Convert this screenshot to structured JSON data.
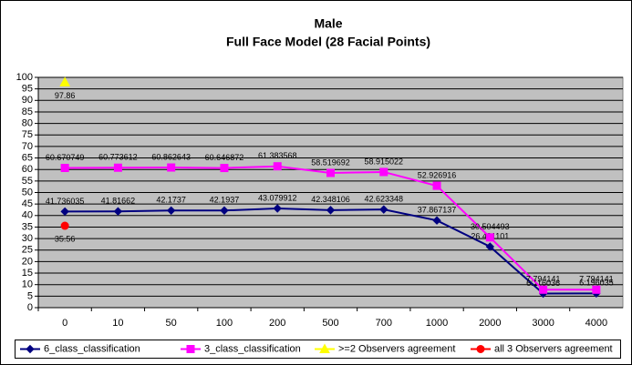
{
  "chart_data": {
    "type": "line",
    "title": "Male",
    "subtitle": "Full Face Model (28 Facial Points)",
    "categories": [
      "0",
      "10",
      "50",
      "100",
      "200",
      "500",
      "700",
      "1000",
      "2000",
      "3000",
      "4000"
    ],
    "series": [
      {
        "name": "6_class_classification",
        "color": "#000080",
        "marker": "diamond",
        "values": [
          41.736035,
          41.81662,
          42.1737,
          42.1937,
          43.079912,
          42.348106,
          42.623348,
          37.867137,
          26.491101,
          6.116036,
          6.196035
        ]
      },
      {
        "name": "3_class_classification",
        "color": "#ff00ff",
        "marker": "square",
        "values": [
          60.670749,
          60.773612,
          60.862643,
          60.646872,
          61.383568,
          58.519692,
          58.915022,
          52.926916,
          30.504493,
          7.794141,
          7.794141
        ]
      },
      {
        "name": ">=2 Observers agreement",
        "color": "#ffff00",
        "marker": "triangle",
        "values": [
          97.86,
          null,
          null,
          null,
          null,
          null,
          null,
          null,
          null,
          null,
          null
        ]
      },
      {
        "name": "all 3 Observers agreement",
        "color": "#ff0000",
        "marker": "circle",
        "values": [
          35.56,
          null,
          null,
          null,
          null,
          null,
          null,
          null,
          null,
          null,
          null
        ]
      }
    ],
    "ylim": [
      0,
      100
    ],
    "yticks": [
      0,
      5,
      10,
      15,
      20,
      25,
      30,
      35,
      40,
      45,
      50,
      55,
      60,
      65,
      70,
      75,
      80,
      85,
      90,
      95,
      100
    ],
    "grid": true,
    "legend": "bottom"
  }
}
